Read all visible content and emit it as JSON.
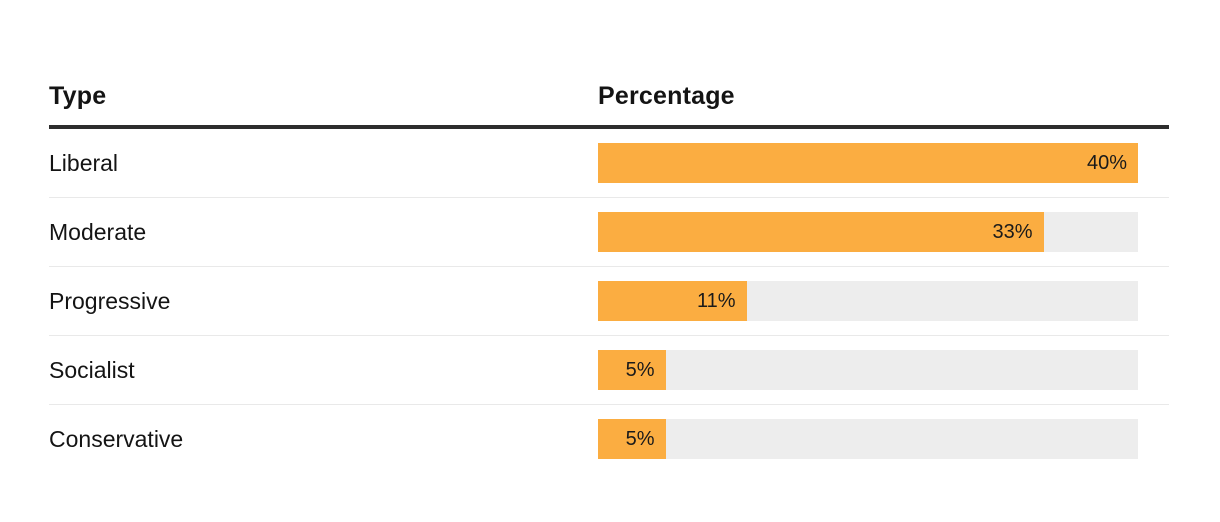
{
  "chart_data": {
    "type": "bar",
    "orientation": "horizontal",
    "title": "",
    "columns": [
      "Type",
      "Percentage"
    ],
    "categories": [
      "Liberal",
      "Moderate",
      "Progressive",
      "Socialist",
      "Conservative"
    ],
    "values": [
      40,
      33,
      11,
      5,
      5
    ],
    "value_labels": [
      "40%",
      "33%",
      "11%",
      "5%",
      "5%"
    ],
    "max_value": 40,
    "grid": false,
    "legend": false,
    "bar_color": "#fbad41",
    "track_color": "#ededed",
    "header_rule_color": "#2d2d2d",
    "divider_color": "#e9e9e9"
  }
}
